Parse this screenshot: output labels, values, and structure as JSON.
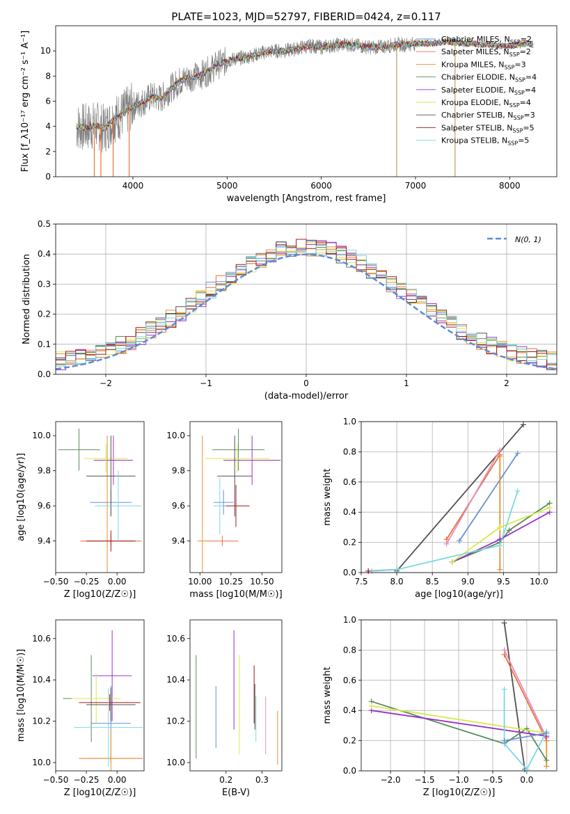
{
  "figure_title": "PLATE=1023, MJD=52797, FIBERID=0424, z=0.117",
  "colors": {
    "Chabrier MILES": "#6a8ed8",
    "Salpeter MILES": "#e8723a",
    "Kroupa MILES": "#e8902a",
    "Chabrier ELODIE": "#5a8a5a",
    "Salpeter ELODIE": "#9b30c8",
    "Kroupa ELODIE": "#d8e84a",
    "Chabrier STELIB": "#505050",
    "Salpeter STELIB": "#a01818",
    "Kroupa STELIB": "#7ad8e0",
    "pink": "#e88ab8",
    "green": "#8ac030",
    "data": "#808080"
  },
  "chart_data": [
    {
      "type": "line",
      "title": "PLATE=1023, MJD=52797, FIBERID=0424, z=0.117",
      "xlabel": "wavelength [Angstrom, rest frame]",
      "ylabel": "Flux [f_λ10⁻¹⁷ erg cm⁻² s⁻¹ A⁻¹]",
      "xlim": [
        3180,
        8500
      ],
      "ylim": [
        0,
        12
      ],
      "xticks": [
        4000,
        5000,
        6000,
        7000,
        8000
      ],
      "yticks": [
        0,
        2,
        4,
        6,
        8,
        10
      ],
      "legend_placement": "top-right",
      "legend": [
        {
          "label": "Chabrier MILES, N",
          "sub": "SSP",
          "eq": "=2",
          "color": "Chabrier MILES"
        },
        {
          "label": "Salpeter MILES, N",
          "sub": "SSP",
          "eq": "=2",
          "color": "Salpeter MILES"
        },
        {
          "label": "Kroupa MILES, N",
          "sub": "SSP",
          "eq": "=3",
          "color": "Kroupa MILES"
        },
        {
          "label": "Chabrier ELODIE, N",
          "sub": "SSP",
          "eq": "=4",
          "color": "Chabrier ELODIE"
        },
        {
          "label": "Salpeter ELODIE, N",
          "sub": "SSP",
          "eq": "=4",
          "color": "Salpeter ELODIE"
        },
        {
          "label": "Kroupa ELODIE, N",
          "sub": "SSP",
          "eq": "=4",
          "color": "Kroupa ELODIE"
        },
        {
          "label": "Chabrier STELIB, N",
          "sub": "SSP",
          "eq": "=3",
          "color": "Chabrier STELIB"
        },
        {
          "label": "Salpeter STELIB, N",
          "sub": "SSP",
          "eq": "=5",
          "color": "Salpeter STELIB"
        },
        {
          "label": "Kroupa STELIB, N",
          "sub": "SSP",
          "eq": "=5",
          "color": "Kroupa STELIB"
        }
      ],
      "continuum": [
        [
          3400,
          4.0
        ],
        [
          3500,
          3.9
        ],
        [
          3600,
          4.1
        ],
        [
          3700,
          3.8
        ],
        [
          3800,
          4.6
        ],
        [
          3900,
          5.0
        ],
        [
          4000,
          5.6
        ],
        [
          4100,
          5.9
        ],
        [
          4200,
          6.4
        ],
        [
          4300,
          6.2
        ],
        [
          4400,
          7.0
        ],
        [
          4500,
          7.6
        ],
        [
          4600,
          7.9
        ],
        [
          4700,
          8.0
        ],
        [
          4800,
          8.4
        ],
        [
          4900,
          8.9
        ],
        [
          5000,
          9.2
        ],
        [
          5100,
          9.4
        ],
        [
          5200,
          9.5
        ],
        [
          5300,
          9.7
        ],
        [
          5400,
          9.9
        ],
        [
          5500,
          10.0
        ],
        [
          5600,
          10.0
        ],
        [
          5700,
          10.1
        ],
        [
          5800,
          10.3
        ],
        [
          5900,
          10.4
        ],
        [
          6000,
          10.3
        ],
        [
          6100,
          10.4
        ],
        [
          6200,
          10.5
        ],
        [
          6300,
          10.5
        ],
        [
          6400,
          10.4
        ],
        [
          6500,
          10.3
        ],
        [
          6600,
          10.3
        ],
        [
          6700,
          10.4
        ],
        [
          6800,
          10.5
        ],
        [
          6900,
          10.5
        ],
        [
          7000,
          10.6
        ],
        [
          7100,
          10.6
        ],
        [
          7200,
          10.6
        ],
        [
          7300,
          10.7
        ],
        [
          7400,
          10.7
        ],
        [
          7500,
          10.6
        ],
        [
          7600,
          10.6
        ],
        [
          7700,
          10.5
        ],
        [
          7800,
          10.5
        ],
        [
          7900,
          10.4
        ],
        [
          8000,
          10.4
        ],
        [
          8100,
          10.5
        ],
        [
          8200,
          10.6
        ],
        [
          8250,
          10.5
        ]
      ],
      "spikes": [
        [
          3590,
          0
        ],
        [
          3660,
          0
        ],
        [
          3790,
          0
        ],
        [
          3960,
          0
        ],
        [
          6800,
          0
        ],
        [
          7420,
          0
        ]
      ]
    },
    {
      "type": "bar",
      "xlabel": "(data-model)/error",
      "ylabel": "Normed distribution",
      "xlim": [
        -2.5,
        2.5
      ],
      "ylim": [
        0,
        0.5
      ],
      "xticks": [
        -2,
        -1,
        0,
        1,
        2
      ],
      "yticks": [
        0.0,
        0.1,
        0.2,
        0.3,
        0.4,
        0.5
      ],
      "legend_placement": "top-right",
      "normal_curve_label": "N(0, 1)",
      "bin_width": 0.1,
      "bin_start": -2.5
    },
    {
      "type": "scatter",
      "xlabel": "Z [log10(Z/Z☉)]",
      "ylabel": "age  [log10(age/yr)]",
      "xlim": [
        -0.5,
        0.22
      ],
      "ylim": [
        9.22,
        10.08
      ],
      "xticks": [
        -0.5,
        -0.25,
        0.0
      ],
      "yticks": [
        9.4,
        9.6,
        9.8,
        10.0
      ],
      "points": [
        {
          "series": "Chabrier MILES",
          "x": -0.05,
          "y": 9.62,
          "xerr": 0.17,
          "yerr": 0.07
        },
        {
          "series": "Salpeter MILES",
          "x": -0.05,
          "y": 9.4,
          "xerr": 0.25,
          "yerr": 0.03
        },
        {
          "series": "Kroupa MILES",
          "x": -0.08,
          "y": 9.4,
          "xerr": 0.2,
          "yerr": 0.6
        },
        {
          "series": "Chabrier ELODIE",
          "x": -0.31,
          "y": 9.92,
          "xerr": 0.17,
          "yerr": 0.12
        },
        {
          "series": "Salpeter ELODIE",
          "x": -0.03,
          "y": 9.86,
          "xerr": 0.16,
          "yerr": 0.14
        },
        {
          "series": "Kroupa ELODIE",
          "x": -0.09,
          "y": 9.87,
          "xerr": 0.18,
          "yerr": 0.08
        },
        {
          "series": "Chabrier STELIB",
          "x": -0.05,
          "y": 9.77,
          "xerr": 0.2,
          "yerr": 0.23
        },
        {
          "series": "Salpeter STELIB",
          "x": -0.05,
          "y": 9.4,
          "xerr": 0.2,
          "yerr": 0.06
        },
        {
          "series": "Kroupa STELIB",
          "x": 0.01,
          "y": 9.6,
          "xerr": 0.19,
          "yerr": 0.2
        }
      ]
    },
    {
      "type": "scatter",
      "xlabel": "mass [log10(M/M☉)]",
      "ylabel": "",
      "xlim": [
        9.92,
        10.66
      ],
      "ylim": [
        9.22,
        10.08
      ],
      "xticks": [
        10.0,
        10.25,
        10.5
      ],
      "yticks": [
        9.4,
        9.6,
        9.8,
        10.0
      ],
      "points": [
        {
          "series": "Chabrier MILES",
          "x": 10.19,
          "y": 9.62,
          "xerr": 0.08,
          "yerr": 0.07
        },
        {
          "series": "Salpeter MILES",
          "x": 10.18,
          "y": 9.4,
          "xerr": 0.13,
          "yerr": 0.03
        },
        {
          "series": "Kroupa MILES",
          "x": 10.02,
          "y": 9.4,
          "xerr": 0.04,
          "yerr": 0.6
        },
        {
          "series": "Chabrier ELODIE",
          "x": 10.31,
          "y": 9.92,
          "xerr": 0.21,
          "yerr": 0.12
        },
        {
          "series": "Salpeter ELODIE",
          "x": 10.42,
          "y": 9.86,
          "xerr": 0.23,
          "yerr": 0.14
        },
        {
          "series": "Kroupa ELODIE",
          "x": 10.3,
          "y": 9.87,
          "xerr": 0.26,
          "yerr": 0.08
        },
        {
          "series": "Chabrier STELIB",
          "x": 10.28,
          "y": 9.77,
          "xerr": 0.14,
          "yerr": 0.23
        },
        {
          "series": "Salpeter STELIB",
          "x": 10.29,
          "y": 9.6,
          "xerr": 0.11,
          "yerr": 0.12
        },
        {
          "series": "Kroupa STELIB",
          "x": 10.16,
          "y": 9.6,
          "xerr": 0.05,
          "yerr": 0.16
        }
      ]
    },
    {
      "type": "line",
      "xlabel": "age  [log10(age/yr)]",
      "ylabel": "mass weight",
      "xlim": [
        7.5,
        10.25
      ],
      "ylim": [
        0,
        1
      ],
      "xticks": [
        7.5,
        8.0,
        8.5,
        9.0,
        9.5,
        10.0
      ],
      "yticks": [
        0.0,
        0.2,
        0.4,
        0.6,
        0.8,
        1.0
      ],
      "series": [
        {
          "name": "Chabrier MILES",
          "points": [
            [
              8.88,
              0.21
            ],
            [
              9.7,
              0.79
            ]
          ]
        },
        {
          "name": "Salpeter MILES",
          "points": [
            [
              8.7,
              0.22
            ],
            [
              9.45,
              0.78
            ]
          ]
        },
        {
          "name": "Kroupa MILES",
          "points": [
            [
              9.45,
              0.77
            ],
            [
              9.45,
              0.02
            ]
          ]
        },
        {
          "name": "Chabrier ELODIE",
          "points": [
            [
              8.78,
              0.07
            ],
            [
              9.45,
              0.2
            ],
            [
              9.58,
              0.28
            ],
            [
              10.15,
              0.46
            ]
          ]
        },
        {
          "name": "Salpeter ELODIE",
          "points": [
            [
              8.78,
              0.07
            ],
            [
              9.45,
              0.22
            ],
            [
              10.15,
              0.4
            ]
          ]
        },
        {
          "name": "Kroupa ELODIE",
          "points": [
            [
              8.78,
              0.07
            ],
            [
              9.45,
              0.3
            ],
            [
              10.15,
              0.43
            ]
          ]
        },
        {
          "name": "Chabrier STELIB",
          "points": [
            [
              8.0,
              0.01
            ],
            [
              9.78,
              0.98
            ]
          ]
        },
        {
          "name": "Salpeter STELIB",
          "points": [
            [
              7.6,
              0.01
            ],
            [
              8.0,
              0.02
            ]
          ]
        },
        {
          "name": "Kroupa STELIB",
          "points": [
            [
              7.65,
              0.01
            ],
            [
              8.0,
              0.02
            ],
            [
              9.45,
              0.18
            ],
            [
              9.7,
              0.54
            ]
          ]
        },
        {
          "name": "pink",
          "points": [
            [
              8.7,
              0.19
            ],
            [
              9.45,
              0.81
            ]
          ]
        }
      ]
    },
    {
      "type": "scatter",
      "xlabel": "Z [log10(Z/Z☉)]",
      "ylabel": "mass [log10(M/M☉)]",
      "xlim": [
        -0.5,
        0.22
      ],
      "ylim": [
        9.96,
        10.69
      ],
      "xticks": [
        -0.5,
        -0.25,
        0.0
      ],
      "yticks": [
        10.0,
        10.2,
        10.4,
        10.6
      ],
      "points": [
        {
          "series": "Chabrier MILES",
          "x": -0.05,
          "y": 10.19,
          "xerr": 0.16,
          "yerr": 0.18
        },
        {
          "series": "Salpeter MILES",
          "x": -0.05,
          "y": 10.02,
          "xerr": 0.26,
          "yerr": 0.02
        },
        {
          "series": "Kroupa MILES",
          "x": -0.05,
          "y": 10.02,
          "xerr": 0.21,
          "yerr": 0.14
        },
        {
          "series": "Chabrier ELODIE",
          "x": -0.21,
          "y": 10.31,
          "xerr": 0.23,
          "yerr": 0.21
        },
        {
          "series": "Salpeter ELODIE",
          "x": -0.04,
          "y": 10.42,
          "xerr": 0.16,
          "yerr": 0.22
        },
        {
          "series": "Kroupa ELODIE",
          "x": -0.17,
          "y": 10.31,
          "xerr": 0.2,
          "yerr": 0.12
        },
        {
          "series": "Chabrier STELIB",
          "x": -0.05,
          "y": 10.28,
          "xerr": 0.2,
          "yerr": 0.08
        },
        {
          "series": "Salpeter STELIB",
          "x": -0.06,
          "y": 10.29,
          "xerr": 0.25,
          "yerr": 0.04
        },
        {
          "series": "Kroupa STELIB",
          "x": -0.07,
          "y": 10.17,
          "xerr": 0.28,
          "yerr": 0.19
        }
      ]
    },
    {
      "type": "scatter",
      "xlabel": "E(B-V)",
      "ylabel": "",
      "xlim": [
        0.1,
        0.355
      ],
      "ylim": [
        9.96,
        10.69
      ],
      "xticks": [
        0.2,
        0.3
      ],
      "yticks": [
        10.0,
        10.2,
        10.4,
        10.6
      ],
      "points": [
        {
          "series": "Chabrier ELODIE",
          "x": 0.117,
          "y": 10.27,
          "yerr": 0.25
        },
        {
          "series": "Chabrier MILES",
          "x": 0.172,
          "y": 10.22,
          "yerr": 0.15
        },
        {
          "series": "Salpeter ELODIE",
          "x": 0.222,
          "y": 10.4,
          "yerr": 0.24
        },
        {
          "series": "Kroupa ELODIE",
          "x": 0.237,
          "y": 10.28,
          "yerr": 0.24
        },
        {
          "series": "Salpeter STELIB",
          "x": 0.278,
          "y": 10.33,
          "yerr": 0.14
        },
        {
          "series": "Chabrier STELIB",
          "x": 0.28,
          "y": 10.27,
          "yerr": 0.11
        },
        {
          "series": "Kroupa STELIB",
          "x": 0.283,
          "y": 10.21,
          "yerr": 0.11
        },
        {
          "series": "pink",
          "x": 0.31,
          "y": 10.18,
          "yerr": 0.14
        },
        {
          "series": "Kroupa MILES",
          "x": 0.343,
          "y": 10.12,
          "yerr": 0.13
        }
      ]
    },
    {
      "type": "line",
      "xlabel": "Z [log10(Z/Z☉)]",
      "ylabel": "mass weight",
      "xlim": [
        -2.43,
        0.44
      ],
      "ylim": [
        0,
        1
      ],
      "xticks": [
        -2.0,
        -1.5,
        -1.0,
        -0.5,
        0.0
      ],
      "yticks": [
        0.0,
        0.2,
        0.4,
        0.6,
        0.8,
        1.0
      ],
      "series": [
        {
          "name": "Chabrier STELIB",
          "points": [
            [
              -0.33,
              0.98
            ],
            [
              -0.03,
              0.01
            ]
          ]
        },
        {
          "name": "Salpeter MILES",
          "points": [
            [
              -0.33,
              0.77
            ],
            [
              0.29,
              0.2
            ]
          ]
        },
        {
          "name": "pink",
          "points": [
            [
              -0.33,
              0.8
            ],
            [
              0.29,
              0.22
            ]
          ]
        },
        {
          "name": "Kroupa MILES",
          "points": [
            [
              0.29,
              0.2
            ],
            [
              0.29,
              0.03
            ]
          ]
        },
        {
          "name": "Chabrier ELODIE",
          "points": [
            [
              -2.28,
              0.46
            ],
            [
              -0.33,
              0.18
            ],
            [
              0.0,
              0.28
            ],
            [
              0.29,
              0.07
            ]
          ]
        },
        {
          "name": "Salpeter ELODIE",
          "points": [
            [
              -2.28,
              0.4
            ],
            [
              0.29,
              0.23
            ]
          ]
        },
        {
          "name": "Kroupa ELODIE",
          "points": [
            [
              -2.28,
              0.43
            ],
            [
              0.29,
              0.25
            ]
          ]
        },
        {
          "name": "Kroupa STELIB",
          "points": [
            [
              -0.33,
              0.54
            ],
            [
              -0.33,
              0.18
            ],
            [
              0.0,
              0.01
            ],
            [
              0.29,
              0.26
            ]
          ]
        },
        {
          "name": "Chabrier MILES",
          "points": [
            [
              -0.33,
              0.2
            ],
            [
              0.29,
              0.25
            ]
          ]
        }
      ]
    }
  ]
}
